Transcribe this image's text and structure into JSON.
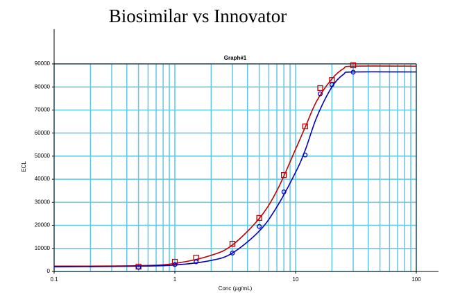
{
  "chart_data": {
    "type": "scatter",
    "title": "Biosimilar vs Innovator",
    "subtitle": "Graph#1",
    "xlabel": "Conc (µg/mL)",
    "ylabel": "ECL",
    "xscale": "log",
    "x": [
      0.5,
      1,
      1.5,
      3,
      5,
      8,
      12,
      16,
      20,
      30
    ],
    "fit_x": [
      0.1,
      0.5,
      1,
      2,
      3,
      5,
      7,
      10,
      12,
      15,
      20,
      25,
      30,
      100
    ],
    "series": [
      {
        "name": "Biosimilar",
        "color": "#c00000",
        "marker": "square",
        "values": [
          2100,
          4200,
          6000,
          12000,
          23200,
          41800,
          62900,
          79500,
          83000,
          89400
        ],
        "fit": [
          2300,
          2500,
          3500,
          7000,
          11500,
          23000,
          35000,
          53000,
          62500,
          74000,
          83500,
          88000,
          89000,
          89000
        ]
      },
      {
        "name": "Innovator",
        "color": "#0000c0",
        "marker": "circle",
        "values": [
          1800,
          3000,
          4200,
          8000,
          19500,
          34500,
          50500,
          77000,
          81000,
          86400
        ],
        "fit": [
          2000,
          2300,
          2800,
          4800,
          8000,
          17500,
          28000,
          43000,
          52500,
          67000,
          80000,
          85500,
          86500,
          86500
        ]
      }
    ],
    "xlim": [
      0.1,
      100
    ],
    "xticks": [
      0.1,
      1,
      10,
      100
    ],
    "x_minor_ticks": [
      0.2,
      0.3,
      0.4,
      0.5,
      0.6,
      0.7,
      0.8,
      0.9,
      2,
      3,
      4,
      5,
      6,
      7,
      8,
      9,
      20,
      30,
      40,
      50,
      60,
      70,
      80,
      90
    ],
    "ylim": [
      0,
      90000
    ],
    "yticks": [
      0,
      10000,
      20000,
      30000,
      40000,
      50000,
      60000,
      70000,
      80000,
      90000
    ],
    "grid": true,
    "grid_color": "#5cc8ea"
  }
}
